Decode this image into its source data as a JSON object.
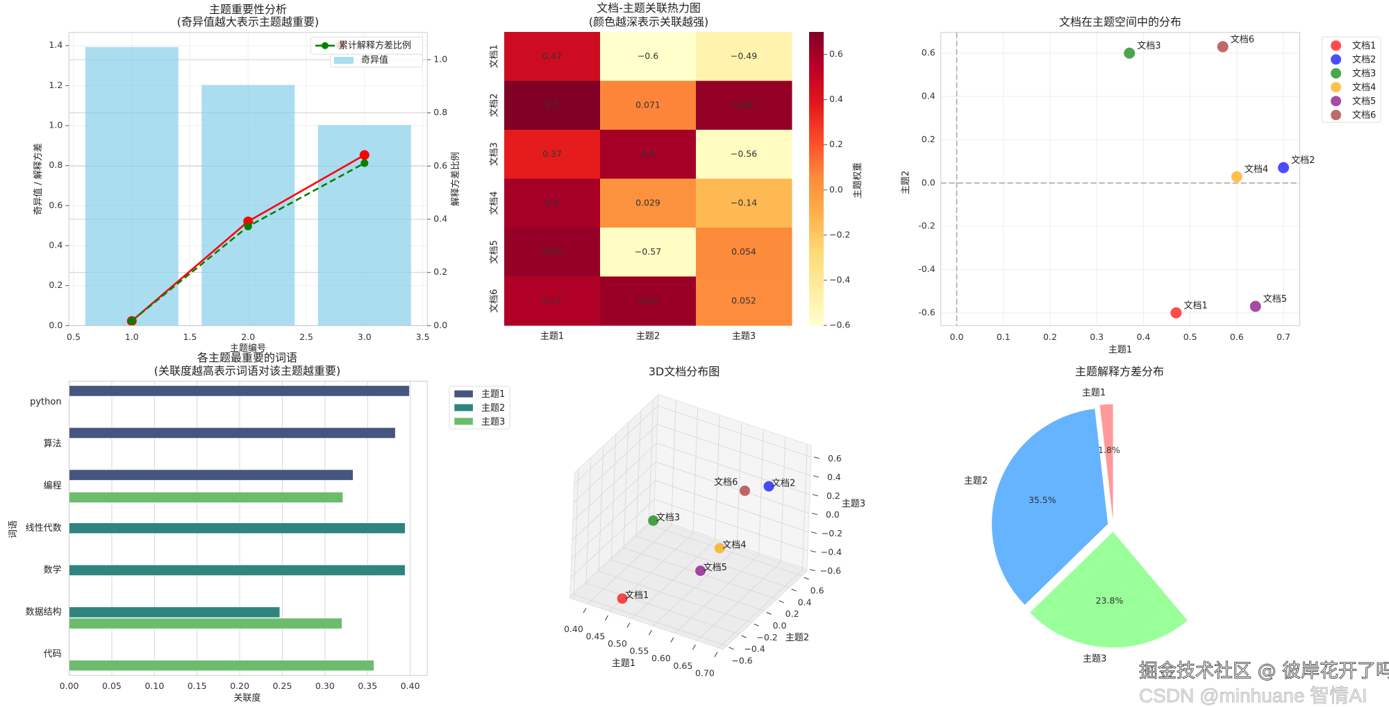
{
  "watermark": {
    "back": "CSDN @minhuane 智情AI",
    "front": "掘金技术社区 @ 彼岸花开了吗"
  },
  "chart_data": [
    {
      "type": "bar+line",
      "title": [
        "主题重要性分析",
        "(奇异值越大表示主题越重要)"
      ],
      "xlabel": "主题编号",
      "ylabel": "奇异值 / 解释方差",
      "ylabel_right": "解释方差比例",
      "x": [
        1,
        2,
        3
      ],
      "xticks": [
        0.5,
        1.0,
        1.5,
        2.0,
        2.5,
        3.0,
        3.5
      ],
      "xlim": [
        0.46,
        3.54
      ],
      "ylim": [
        0,
        1.466
      ],
      "yticks": [
        0.0,
        0.2,
        0.4,
        0.6,
        0.8,
        1.0,
        1.2,
        1.4
      ],
      "ylim_right": [
        0,
        1.1025
      ],
      "yticks_right": [
        0.0,
        0.2,
        0.4,
        0.6,
        0.8,
        1.0
      ],
      "grid": true,
      "legend": "top-right",
      "series": [
        {
          "name": "奇异值",
          "type": "bar",
          "axis": "left",
          "values": [
            1.393,
            1.203,
            1.003
          ],
          "color": "#87ceeb"
        },
        {
          "type": "line",
          "axis": "left",
          "values": [
            0.023,
            0.521,
            0.853
          ],
          "color": "#ff0000",
          "style": "solid"
        },
        {
          "name": "累计解释方差比例",
          "type": "line",
          "axis": "right",
          "values": [
            0.018,
            0.373,
            0.611
          ],
          "color": "#008000",
          "style": "dashed"
        }
      ]
    },
    {
      "type": "heatmap",
      "title": [
        "文档-主题关联热力图",
        "(颜色越深表示关联越强)"
      ],
      "rows": [
        "文档1",
        "文档2",
        "文档3",
        "文档4",
        "文档5",
        "文档6"
      ],
      "cols": [
        "主题1",
        "主题2",
        "主题3"
      ],
      "values": [
        [
          0.47,
          -0.6,
          -0.49
        ],
        [
          0.7,
          0.071,
          0.65
        ],
        [
          0.37,
          0.6,
          -0.56
        ],
        [
          0.6,
          0.029,
          -0.14
        ],
        [
          0.64,
          -0.57,
          0.054
        ],
        [
          0.57,
          0.63,
          0.052
        ]
      ],
      "colormap": "YlOrRd",
      "vmin": -0.6,
      "vmax": 0.7,
      "colorbar_label": "主题权重",
      "colorbar_ticks": [
        0.6,
        0.4,
        0.2,
        0.0,
        -0.2,
        -0.4,
        -0.6
      ]
    },
    {
      "type": "scatter",
      "title": "文档在主题空间中的分布",
      "xlabel": "主题1",
      "ylabel": "主题2",
      "xlim": [
        -0.034,
        0.735
      ],
      "ylim": [
        -0.659,
        0.696
      ],
      "xticks": [
        0.0,
        0.1,
        0.2,
        0.3,
        0.4,
        0.5,
        0.6,
        0.7
      ],
      "yticks": [
        -0.6,
        -0.4,
        -0.2,
        0.0,
        0.2,
        0.4,
        0.6
      ],
      "grid": true,
      "legend": "outside-top-right",
      "reference_lines": {
        "x": 0,
        "y": 0
      },
      "points": [
        {
          "name": "文档1",
          "x": 0.47,
          "y": -0.6,
          "color": "#ff0000"
        },
        {
          "name": "文档2",
          "x": 0.7,
          "y": 0.071,
          "color": "#0000ff"
        },
        {
          "name": "文档3",
          "x": 0.37,
          "y": 0.6,
          "color": "#008000"
        },
        {
          "name": "文档4",
          "x": 0.6,
          "y": 0.029,
          "color": "#ffa500"
        },
        {
          "name": "文档5",
          "x": 0.64,
          "y": -0.57,
          "color": "#800080"
        },
        {
          "name": "文档6",
          "x": 0.57,
          "y": 0.63,
          "color": "#a52a2a"
        }
      ]
    },
    {
      "type": "bar",
      "orientation": "horizontal",
      "title": [
        "各主题最重要的词语",
        "(关联度越高表示词语对该主题越重要)"
      ],
      "xlabel": "关联度",
      "ylabel": "词语",
      "xlim": [
        0,
        0.42
      ],
      "xticks": [
        0.0,
        0.05,
        0.1,
        0.15,
        0.2,
        0.25,
        0.3,
        0.35,
        0.4
      ],
      "categories": [
        "python",
        "算法",
        "编程",
        "线性代数",
        "数学",
        "数据结构",
        "代码"
      ],
      "legend": "outside-top-right",
      "series": [
        {
          "name": "主题1",
          "color": "#46557f",
          "values": [
            0.399,
            0.3825,
            0.333,
            null,
            null,
            null,
            null
          ]
        },
        {
          "name": "主题2",
          "color": "#2e847f",
          "values": [
            null,
            null,
            null,
            0.394,
            0.394,
            0.247,
            null
          ]
        },
        {
          "name": "主题3",
          "color": "#6bbd6d",
          "values": [
            null,
            null,
            0.321,
            null,
            null,
            0.32,
            0.3575
          ]
        }
      ]
    },
    {
      "type": "scatter3d",
      "title": "3D文档分布图",
      "xlabel": "主题1",
      "ylabel": "主题2",
      "zlabel": "主题3",
      "xlim": [
        0.36,
        0.71
      ],
      "ylim": [
        -0.66,
        0.68
      ],
      "zlim": [
        -0.62,
        0.72
      ],
      "xticks": [
        0.4,
        0.45,
        0.5,
        0.55,
        0.6,
        0.65,
        0.7
      ],
      "yticks": [
        -0.6,
        -0.4,
        -0.2,
        0.0,
        0.2,
        0.4,
        0.6
      ],
      "zticks": [
        -0.6,
        -0.4,
        -0.2,
        0.0,
        0.2,
        0.4,
        0.6
      ],
      "points": [
        {
          "name": "文档1",
          "x": 0.47,
          "y": -0.6,
          "z": -0.49,
          "color": "#ff0000"
        },
        {
          "name": "文档2",
          "x": 0.7,
          "y": 0.071,
          "z": 0.65,
          "color": "#0000ff"
        },
        {
          "name": "文档3",
          "x": 0.37,
          "y": 0.6,
          "z": -0.56,
          "color": "#008000"
        },
        {
          "name": "文档4",
          "x": 0.6,
          "y": 0.029,
          "z": -0.14,
          "color": "#ffa500"
        },
        {
          "name": "文档5",
          "x": 0.64,
          "y": -0.57,
          "z": 0.054,
          "color": "#800080"
        },
        {
          "name": "文档6",
          "x": 0.57,
          "y": 0.63,
          "z": 0.052,
          "color": "#a52a2a"
        }
      ]
    },
    {
      "type": "pie",
      "title": "主题解释方差分布",
      "labels": [
        "主题1",
        "主题2",
        "主题3"
      ],
      "values": [
        0.018,
        0.355,
        0.238
      ],
      "percent_labels": [
        "1.8%",
        "35.5%",
        "23.8%"
      ],
      "colors": [
        "#ff9999",
        "#66b3ff",
        "#99ff99"
      ],
      "start_angle": 90
    }
  ]
}
